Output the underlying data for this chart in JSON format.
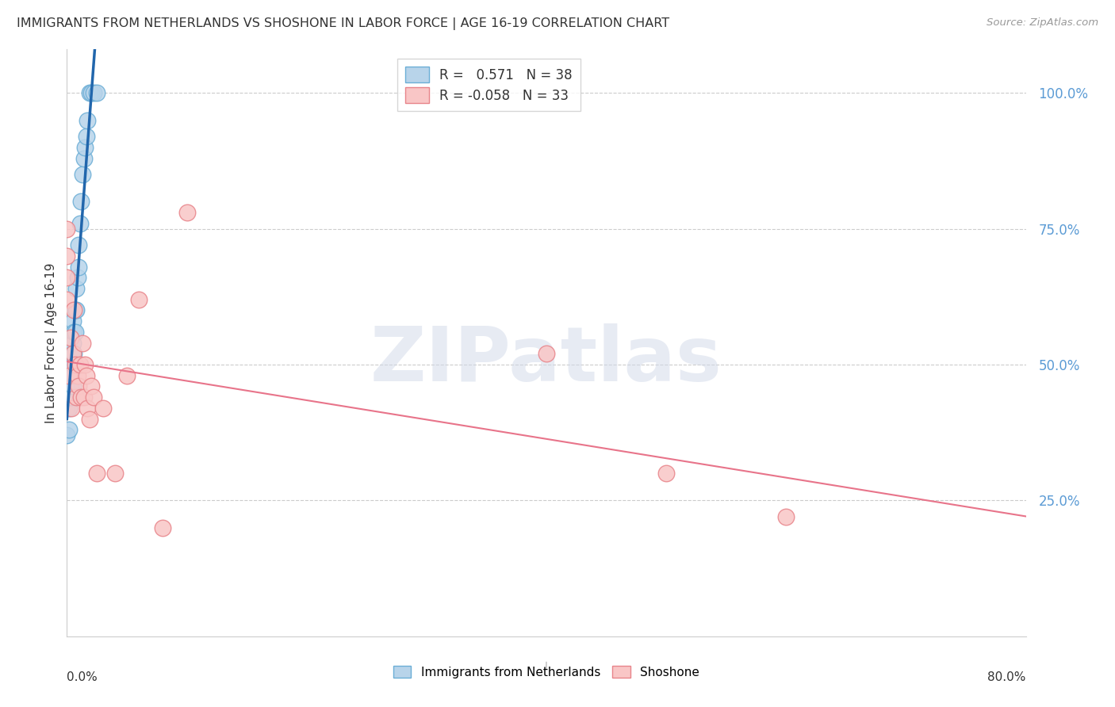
{
  "title": "IMMIGRANTS FROM NETHERLANDS VS SHOSHONE IN LABOR FORCE | AGE 16-19 CORRELATION CHART",
  "source": "Source: ZipAtlas.com",
  "ylabel": "In Labor Force | Age 16-19",
  "ytick_values": [
    0.0,
    0.25,
    0.5,
    0.75,
    1.0
  ],
  "ytick_labels": [
    "",
    "25.0%",
    "50.0%",
    "75.0%",
    "100.0%"
  ],
  "xlim": [
    0.0,
    0.8
  ],
  "ylim": [
    0.0,
    1.08
  ],
  "watermark_text": "ZIPatlas",
  "netherlands_color": "#b8d4ea",
  "netherlands_edge": "#6baed6",
  "shoshone_color": "#f9c6c6",
  "shoshone_edge": "#e8848a",
  "blue_line_color": "#2166ac",
  "pink_line_color": "#e8748a",
  "tick_color": "#5b9bd5",
  "title_color": "#333333",
  "source_color": "#999999",
  "ylabel_color": "#333333",
  "R_netherlands": 0.571,
  "N_netherlands": 38,
  "R_shoshone": -0.058,
  "N_shoshone": 33,
  "netherlands_x": [
    0.0,
    0.0,
    0.0,
    0.0,
    0.0,
    0.0,
    0.002,
    0.002,
    0.003,
    0.003,
    0.003,
    0.004,
    0.004,
    0.004,
    0.005,
    0.005,
    0.005,
    0.005,
    0.006,
    0.006,
    0.007,
    0.007,
    0.008,
    0.008,
    0.009,
    0.01,
    0.01,
    0.011,
    0.012,
    0.013,
    0.014,
    0.015,
    0.016,
    0.017,
    0.019,
    0.02,
    0.022,
    0.025
  ],
  "netherlands_y": [
    0.37,
    0.42,
    0.44,
    0.46,
    0.48,
    0.5,
    0.38,
    0.42,
    0.44,
    0.46,
    0.5,
    0.44,
    0.48,
    0.52,
    0.46,
    0.5,
    0.54,
    0.58,
    0.52,
    0.56,
    0.56,
    0.6,
    0.6,
    0.64,
    0.66,
    0.68,
    0.72,
    0.76,
    0.8,
    0.85,
    0.88,
    0.9,
    0.92,
    0.95,
    1.0,
    1.0,
    1.0,
    1.0
  ],
  "shoshone_x": [
    0.0,
    0.0,
    0.0,
    0.0,
    0.002,
    0.003,
    0.004,
    0.005,
    0.006,
    0.007,
    0.008,
    0.009,
    0.01,
    0.011,
    0.012,
    0.013,
    0.014,
    0.015,
    0.016,
    0.017,
    0.019,
    0.02,
    0.022,
    0.025,
    0.03,
    0.04,
    0.05,
    0.06,
    0.08,
    0.1,
    0.4,
    0.5,
    0.6
  ],
  "shoshone_y": [
    0.62,
    0.66,
    0.7,
    0.75,
    0.48,
    0.55,
    0.42,
    0.52,
    0.6,
    0.5,
    0.44,
    0.48,
    0.46,
    0.5,
    0.44,
    0.54,
    0.44,
    0.5,
    0.48,
    0.42,
    0.4,
    0.46,
    0.44,
    0.3,
    0.42,
    0.3,
    0.48,
    0.62,
    0.2,
    0.78,
    0.52,
    0.3,
    0.22
  ]
}
